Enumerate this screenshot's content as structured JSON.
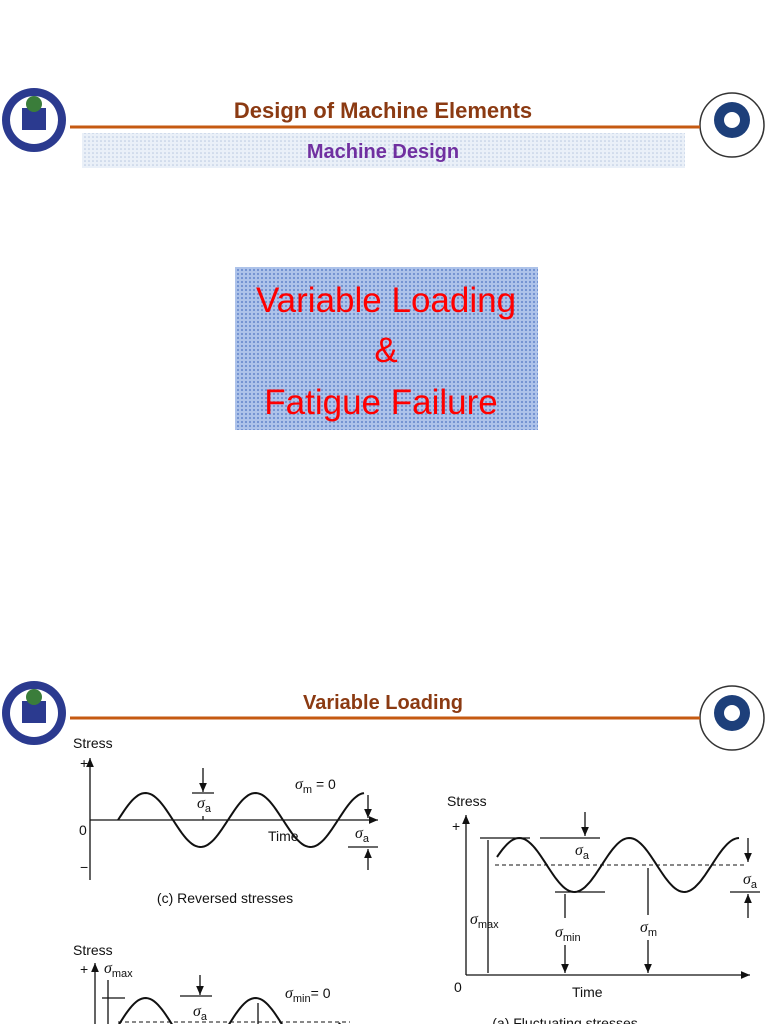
{
  "slide1": {
    "title": "Design of Machine Elements",
    "subtitle": "Machine Design",
    "topic": [
      "Variable Loading",
      "&",
      "Fatigue Failure"
    ]
  },
  "slide2": {
    "title": "Variable Loading",
    "fig_c": {
      "axis": "Stress",
      "plus": "+",
      "zero": "0",
      "minus": "−",
      "sigma_m": {
        "sym": "σ",
        "sub": "m",
        "rest": " = 0"
      },
      "sigma_a": {
        "sym": "σ",
        "sub": "a"
      },
      "time": "Time",
      "caption": "(c) Reversed stresses"
    },
    "fig_b": {
      "axis": "Stress",
      "plus": "+",
      "sigma_max": {
        "sym": "σ",
        "sub": "max"
      },
      "sigma_a": {
        "sym": "σ",
        "sub": "a"
      },
      "sigma_min": {
        "sym": "σ",
        "sub": "min",
        "rest": "= 0"
      }
    },
    "fig_a": {
      "axis": "Stress",
      "plus": "+",
      "zero": "0",
      "sigma_a": {
        "sym": "σ",
        "sub": "a"
      },
      "sigma_max": {
        "sym": "σ",
        "sub": "max"
      },
      "sigma_min": {
        "sym": "σ",
        "sub": "min"
      },
      "sigma_m": {
        "sym": "σ",
        "sub": "m"
      },
      "time": "Time",
      "caption": "(a) Fluctuating stresses"
    }
  }
}
